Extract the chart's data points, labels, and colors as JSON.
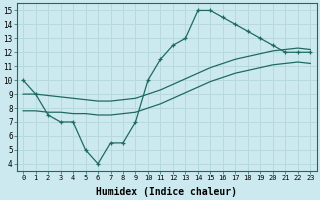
{
  "xlabel": "Humidex (Indice chaleur)",
  "bg_color": "#cde9f0",
  "line_color": "#1e6b5e",
  "grid_color": "#b8d8e0",
  "xlim": [
    -0.5,
    23.5
  ],
  "ylim": [
    3.5,
    15.5
  ],
  "xticks": [
    0,
    1,
    2,
    3,
    4,
    5,
    6,
    7,
    8,
    9,
    10,
    11,
    12,
    13,
    14,
    15,
    16,
    17,
    18,
    19,
    20,
    21,
    22,
    23
  ],
  "yticks": [
    4,
    5,
    6,
    7,
    8,
    9,
    10,
    11,
    12,
    13,
    14,
    15
  ],
  "series1_x": [
    0,
    1,
    2,
    3,
    4,
    5,
    6,
    7,
    8,
    9,
    10,
    11,
    12,
    13,
    14,
    15,
    16,
    17,
    18,
    19,
    20,
    21,
    22,
    23
  ],
  "series1_y": [
    10,
    9,
    7.5,
    7,
    7,
    5,
    4,
    5.5,
    5.5,
    7,
    10,
    11.5,
    12.5,
    13,
    15,
    15,
    14.5,
    14,
    13.5,
    13,
    12.5,
    12,
    12,
    12
  ],
  "series2_x": [
    0,
    1,
    2,
    3,
    4,
    5,
    6,
    7,
    8,
    9,
    10,
    11,
    12,
    13,
    14,
    15,
    16,
    17,
    18,
    19,
    20,
    21,
    22,
    23
  ],
  "series2_y": [
    9.0,
    9.0,
    8.9,
    8.8,
    8.7,
    8.6,
    8.5,
    8.5,
    8.6,
    8.7,
    9.0,
    9.3,
    9.7,
    10.1,
    10.5,
    10.9,
    11.2,
    11.5,
    11.7,
    11.9,
    12.1,
    12.2,
    12.3,
    12.2
  ],
  "series3_x": [
    0,
    1,
    2,
    3,
    4,
    5,
    6,
    7,
    8,
    9,
    10,
    11,
    12,
    13,
    14,
    15,
    16,
    17,
    18,
    19,
    20,
    21,
    22,
    23
  ],
  "series3_y": [
    7.8,
    7.8,
    7.7,
    7.7,
    7.6,
    7.6,
    7.5,
    7.5,
    7.6,
    7.7,
    8.0,
    8.3,
    8.7,
    9.1,
    9.5,
    9.9,
    10.2,
    10.5,
    10.7,
    10.9,
    11.1,
    11.2,
    11.3,
    11.2
  ]
}
